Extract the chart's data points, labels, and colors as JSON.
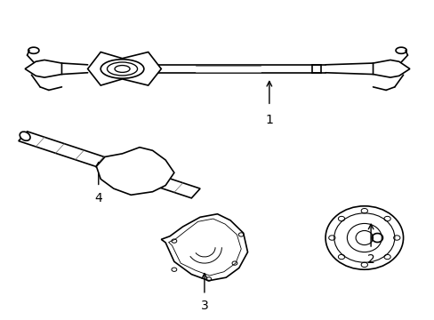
{
  "background_color": "#ffffff",
  "line_color": "#000000",
  "line_width": 1.2,
  "fig_width": 4.89,
  "fig_height": 3.6,
  "dpi": 100,
  "font_size": 10
}
